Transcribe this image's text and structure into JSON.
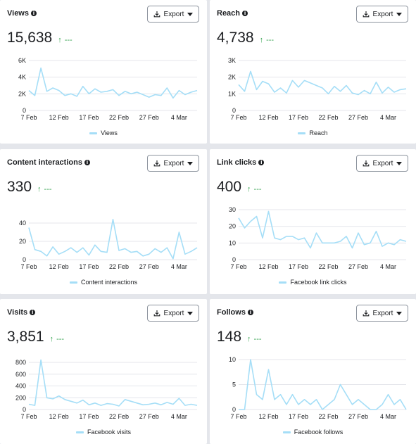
{
  "export_label": "Export",
  "cards": [
    {
      "title": "Views",
      "value": "15,638",
      "trend": "↑",
      "trend_text": "---"
    },
    {
      "title": "Reach",
      "value": "4,738",
      "trend": "↑",
      "trend_text": "---"
    },
    {
      "title": "Content interactions",
      "value": "330",
      "trend": "↑",
      "trend_text": "---"
    },
    {
      "title": "Link clicks",
      "value": "400",
      "trend": "↑",
      "trend_text": "---"
    },
    {
      "title": "Visits",
      "value": "3,851",
      "trend": "↑",
      "trend_text": "---"
    },
    {
      "title": "Follows",
      "value": "148",
      "trend": "↑",
      "trend_text": "---"
    }
  ],
  "series_color": "#a5def7",
  "chart_data": [
    {
      "type": "line",
      "xlabel": "",
      "ylabel": "",
      "grid": true,
      "legend_placement": "bottom",
      "x_ticks": [
        "7 Feb",
        "12 Feb",
        "17 Feb",
        "22 Feb",
        "27 Feb",
        "4 Mar"
      ],
      "y_ticks": [
        "6K",
        "4K",
        "2K",
        "0"
      ],
      "ylim": [
        0,
        6000
      ],
      "series": [
        {
          "name": "Views",
          "values": [
            2400,
            1800,
            5100,
            2300,
            2700,
            2400,
            1800,
            2000,
            1700,
            2900,
            2000,
            2600,
            2200,
            2300,
            2500,
            1800,
            2300,
            2000,
            2200,
            1900,
            1600,
            1900,
            1800,
            2700,
            1500,
            2400,
            1900,
            2200,
            2400
          ]
        }
      ]
    },
    {
      "type": "line",
      "xlabel": "",
      "ylabel": "",
      "grid": true,
      "legend_placement": "bottom",
      "x_ticks": [
        "7 Feb",
        "12 Feb",
        "17 Feb",
        "22 Feb",
        "27 Feb",
        "4 Mar"
      ],
      "y_ticks": [
        "3K",
        "2K",
        "1K",
        "0"
      ],
      "ylim": [
        0,
        3000
      ],
      "series": [
        {
          "name": "Reach",
          "values": [
            1550,
            1150,
            2350,
            1250,
            1750,
            1600,
            1100,
            1350,
            1050,
            1800,
            1400,
            1800,
            1650,
            1500,
            1350,
            1000,
            1450,
            1150,
            1500,
            1050,
            950,
            1200,
            1000,
            1700,
            1050,
            1400,
            1100,
            1250,
            1300
          ]
        }
      ]
    },
    {
      "type": "line",
      "xlabel": "",
      "ylabel": "",
      "grid": true,
      "legend_placement": "bottom",
      "x_ticks": [
        "7 Feb",
        "12 Feb",
        "17 Feb",
        "22 Feb",
        "27 Feb",
        "4 Mar"
      ],
      "y_ticks": [
        "40",
        "20",
        "0"
      ],
      "ylim": [
        0,
        50
      ],
      "series": [
        {
          "name": "Content interactions",
          "values": [
            35,
            11,
            9,
            4,
            14,
            6,
            9,
            13,
            8,
            13,
            5,
            16,
            9,
            8,
            44,
            10,
            12,
            8,
            9,
            4,
            6,
            12,
            8,
            13,
            1,
            30,
            6,
            9,
            13
          ]
        }
      ]
    },
    {
      "type": "line",
      "xlabel": "",
      "ylabel": "",
      "grid": true,
      "legend_placement": "bottom",
      "x_ticks": [
        "7 Feb",
        "12 Feb",
        "17 Feb",
        "22 Feb",
        "27 Feb",
        "4 Mar"
      ],
      "y_ticks": [
        "30",
        "20",
        "10",
        "0"
      ],
      "ylim": [
        0,
        30
      ],
      "series": [
        {
          "name": "Facebook link clicks",
          "values": [
            25,
            19,
            23,
            26,
            13,
            29,
            13,
            12,
            14,
            14,
            12,
            13,
            7,
            16,
            10,
            10,
            10,
            11,
            14,
            7,
            16,
            9,
            10,
            17,
            8,
            10,
            9,
            12,
            11
          ]
        }
      ]
    },
    {
      "type": "line",
      "xlabel": "",
      "ylabel": "",
      "grid": true,
      "legend_placement": "bottom",
      "x_ticks": [
        "7 Feb",
        "12 Feb",
        "17 Feb",
        "22 Feb",
        "27 Feb",
        "4 Mar"
      ],
      "y_ticks": [
        "800",
        "600",
        "400",
        "200",
        "0"
      ],
      "ylim": [
        0,
        900
      ],
      "series": [
        {
          "name": "Facebook visits",
          "values": [
            90,
            70,
            840,
            200,
            180,
            230,
            170,
            140,
            110,
            160,
            80,
            110,
            70,
            100,
            90,
            60,
            170,
            140,
            110,
            80,
            90,
            110,
            80,
            120,
            90,
            190,
            70,
            90,
            70
          ]
        }
      ]
    },
    {
      "type": "line",
      "xlabel": "",
      "ylabel": "",
      "grid": true,
      "legend_placement": "bottom",
      "x_ticks": [
        "7 Feb",
        "12 Feb",
        "17 Feb",
        "22 Feb",
        "27 Feb",
        "4 Mar"
      ],
      "y_ticks": [
        "10",
        "5",
        "0"
      ],
      "ylim": [
        0,
        12.5
      ],
      "series": [
        {
          "name": "Facebook follows",
          "values": [
            0,
            0,
            10,
            3,
            2,
            8,
            2,
            3,
            1,
            3,
            1,
            2,
            1,
            2,
            0,
            1,
            2,
            5,
            3,
            1,
            2,
            1,
            0,
            0,
            1,
            3,
            1,
            2,
            0
          ]
        }
      ]
    }
  ]
}
